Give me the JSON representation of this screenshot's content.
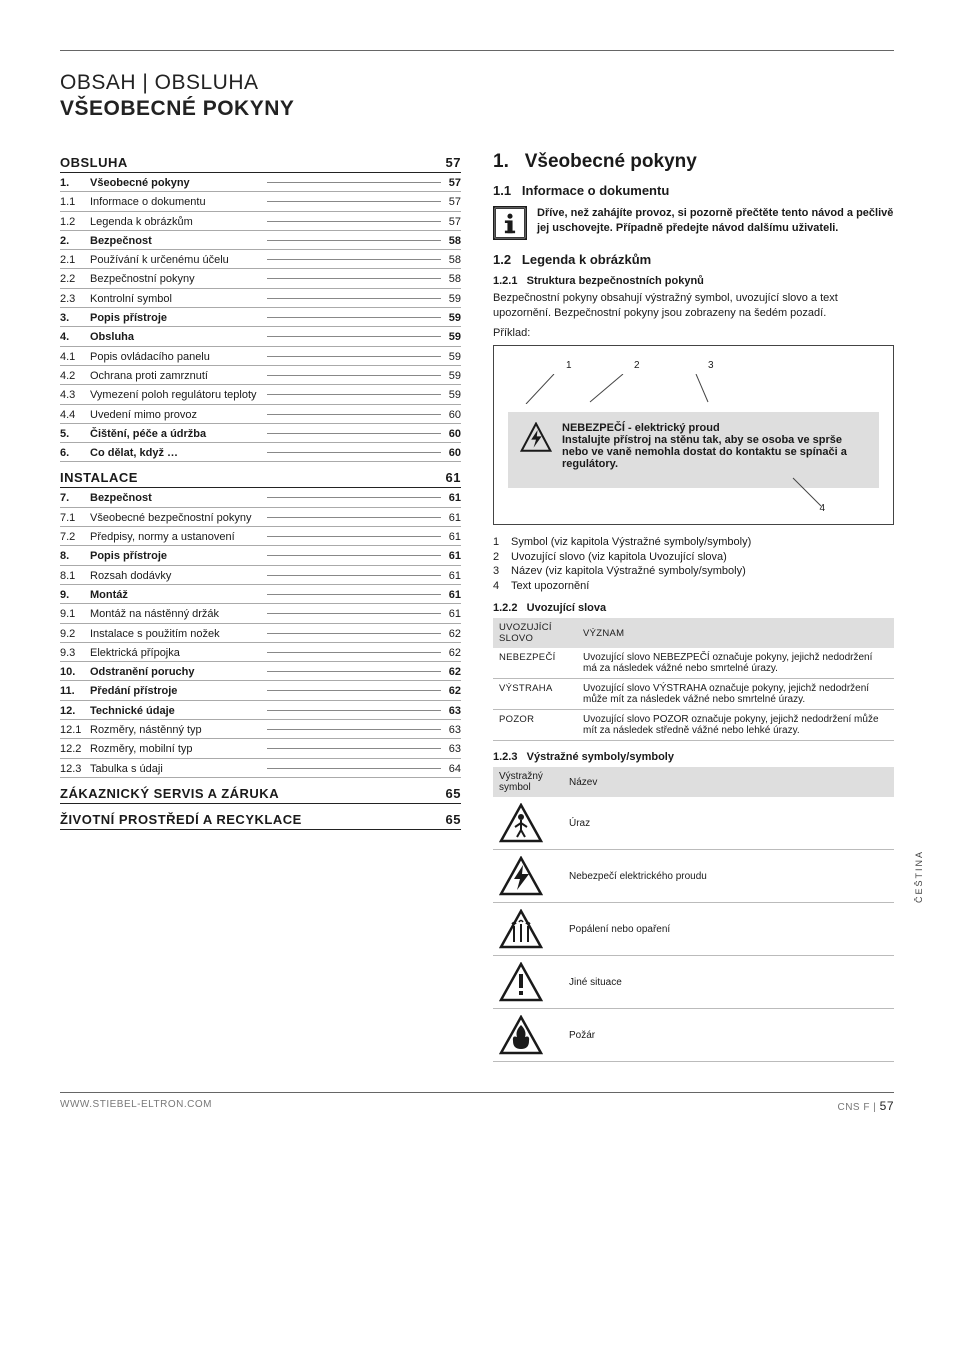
{
  "page": {
    "header_line1": "OBSAH | OBSLUHA",
    "header_line2": "VŠEOBECNÉ POKYNY",
    "side_tab": "ČEŠTINA"
  },
  "toc": {
    "sections": [
      {
        "type": "head",
        "label": "OBSLUHA",
        "page": "57"
      },
      {
        "type": "bold",
        "num": "1.",
        "label": "Všeobecné pokyny",
        "page": "57"
      },
      {
        "type": "row",
        "num": "1.1",
        "label": "Informace o dokumentu",
        "page": "57"
      },
      {
        "type": "row",
        "num": "1.2",
        "label": "Legenda k obrázkům",
        "page": "57"
      },
      {
        "type": "bold",
        "num": "2.",
        "label": "Bezpečnost",
        "page": "58"
      },
      {
        "type": "row",
        "num": "2.1",
        "label": "Používání k určenému účelu",
        "page": "58"
      },
      {
        "type": "row",
        "num": "2.2",
        "label": "Bezpečnostní pokyny",
        "page": "58"
      },
      {
        "type": "row",
        "num": "2.3",
        "label": "Kontrolní symbol",
        "page": "59"
      },
      {
        "type": "bold",
        "num": "3.",
        "label": "Popis přístroje",
        "page": "59"
      },
      {
        "type": "bold",
        "num": "4.",
        "label": "Obsluha",
        "page": "59"
      },
      {
        "type": "row",
        "num": "4.1",
        "label": "Popis ovládacího panelu",
        "page": "59"
      },
      {
        "type": "row",
        "num": "4.2",
        "label": "Ochrana proti zamrznutí",
        "page": "59"
      },
      {
        "type": "row",
        "num": "4.3",
        "label": "Vymezení poloh regulátoru teploty",
        "page": "59"
      },
      {
        "type": "row",
        "num": "4.4",
        "label": "Uvedení mimo provoz",
        "page": "60"
      },
      {
        "type": "bold",
        "num": "5.",
        "label": "Čištění, péče a údržba",
        "page": "60"
      },
      {
        "type": "bold",
        "num": "6.",
        "label": "Co dělat, když …",
        "page": "60"
      },
      {
        "type": "sp"
      },
      {
        "type": "head",
        "label": "INSTALACE",
        "page": "61"
      },
      {
        "type": "bold",
        "num": "7.",
        "label": "Bezpečnost",
        "page": "61"
      },
      {
        "type": "row",
        "num": "7.1",
        "label": "Všeobecné bezpečnostní pokyny",
        "page": "61"
      },
      {
        "type": "row",
        "num": "7.2",
        "label": "Předpisy, normy a ustanovení",
        "page": "61"
      },
      {
        "type": "bold",
        "num": "8.",
        "label": "Popis přístroje",
        "page": "61"
      },
      {
        "type": "row",
        "num": "8.1",
        "label": "Rozsah dodávky",
        "page": "61"
      },
      {
        "type": "bold",
        "num": "9.",
        "label": "Montáž",
        "page": "61"
      },
      {
        "type": "row",
        "num": "9.1",
        "label": "Montáž na nástěnný držák",
        "page": "61"
      },
      {
        "type": "row",
        "num": "9.2",
        "label": "Instalace s použitím nožek",
        "page": "62"
      },
      {
        "type": "row",
        "num": "9.3",
        "label": "Elektrická přípojka",
        "page": "62"
      },
      {
        "type": "bold",
        "num": "10.",
        "label": "Odstranění poruchy",
        "page": "62"
      },
      {
        "type": "bold",
        "num": "11.",
        "label": "Předání přístroje",
        "page": "62"
      },
      {
        "type": "bold",
        "num": "12.",
        "label": "Technické údaje",
        "page": "63"
      },
      {
        "type": "row",
        "num": "12.1",
        "label": "Rozměry, nástěnný typ",
        "page": "63"
      },
      {
        "type": "row",
        "num": "12.2",
        "label": "Rozměry, mobilní typ",
        "page": "63"
      },
      {
        "type": "row",
        "num": "12.3",
        "label": "Tabulka s údaji",
        "page": "64"
      },
      {
        "type": "sp"
      },
      {
        "type": "head",
        "label": "ZÁKAZNICKÝ SERVIS A ZÁRUKA",
        "page": "65"
      },
      {
        "type": "sp"
      },
      {
        "type": "head",
        "label": "ŽIVOTNÍ PROSTŘEDÍ A RECYKLACE",
        "page": "65"
      }
    ]
  },
  "section1": {
    "title_num": "1.",
    "title": "Všeobecné pokyny",
    "s11_num": "1.1",
    "s11_title": "Informace o dokumentu",
    "info_text": "Dříve, než zahájíte provoz, si pozorně přečtěte tento návod a pečlivě jej uschovejte. Případně předejte návod dalšímu uživateli.",
    "s12_num": "1.2",
    "s12_title": "Legenda k obrázkům",
    "s121_num": "1.2.1",
    "s121_title": "Struktura bezpečnostních pokynů",
    "safety_para": "Bezpečnostní pokyny obsahují výstražný symbol, uvozující slovo a text upozornění. Bezpečnostní pokyny jsou zobrazeny na šedém pozadí.",
    "example_label": "Příklad:",
    "example_title": "NEBEZPEČÍ - elektrický proud",
    "example_body": "Instalujte přístroj na stěnu tak, aby se osoba ve sprše nebo ve vaně nemohla dostat do kontaktu se spínači a regulátory.",
    "legend": [
      {
        "n": "1",
        "t": "Symbol (viz kapitola Výstražné symboly/symboly)"
      },
      {
        "n": "2",
        "t": "Uvozující slovo (viz kapitola Uvozující slova)"
      },
      {
        "n": "3",
        "t": "Název (viz kapitola Výstražné symboly/symboly)"
      },
      {
        "n": "4",
        "t": "Text upozornění"
      }
    ],
    "s122_num": "1.2.2",
    "s122_title": "Uvozující slova",
    "signal_table": {
      "col1": "UVOZUJÍCÍ SLOVO",
      "col2": "Význam",
      "rows": [
        {
          "w": "NEBEZPEČÍ",
          "m": "Uvozující slovo NEBEZPEČÍ označuje pokyny, jejichž nedodržení má za následek vážné nebo smrtelné úrazy."
        },
        {
          "w": "VÝSTRAHA",
          "m": "Uvozující slovo VÝSTRAHA označuje pokyny, jejichž nedodržení může mít za následek vážné nebo smrtelné úrazy."
        },
        {
          "w": "POZOR",
          "m": "Uvozující slovo POZOR označuje pokyny, jejichž nedodržení může mít za následek středně vážné nebo lehké úrazy."
        }
      ]
    },
    "s123_num": "1.2.3",
    "s123_title": "Výstražné symboly/symboly",
    "symbol_table": {
      "col1": "Výstražný symbol",
      "col2": "Název",
      "rows": [
        {
          "icon": "injury",
          "name": "Úraz"
        },
        {
          "icon": "electric",
          "name": "Nebezpečí elektrického proudu"
        },
        {
          "icon": "burn",
          "name": "Popálení nebo opaření"
        },
        {
          "icon": "other",
          "name": "Jiné situace"
        },
        {
          "icon": "fire",
          "name": "Požár"
        }
      ]
    }
  },
  "footer": {
    "left": "WWW.STIEBEL-ELTRON.COM",
    "right_label": "CNS F |",
    "right_page": "57"
  },
  "colors": {
    "text": "#1a1a1a",
    "rule": "#666666",
    "toc_rule": "#aaaaaa",
    "grey_bg": "#dedede"
  }
}
